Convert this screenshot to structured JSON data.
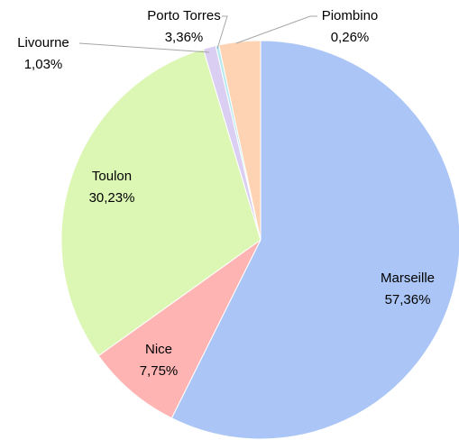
{
  "chart_data": {
    "type": "pie",
    "categories": [
      "Marseille",
      "Nice",
      "Toulon",
      "Livourne",
      "Piombino",
      "Porto Torres"
    ],
    "values": [
      57.36,
      7.75,
      30.23,
      1.03,
      0.26,
      3.36
    ],
    "value_labels": [
      "57,36%",
      "7,75%",
      "30,23%",
      "1,03%",
      "0,26%",
      "3,36%"
    ],
    "colors": [
      "#abc6f6",
      "#ffb4b4",
      "#dcf6b4",
      "#dacff2",
      "#b6e8f0",
      "#fdd3b3"
    ]
  }
}
